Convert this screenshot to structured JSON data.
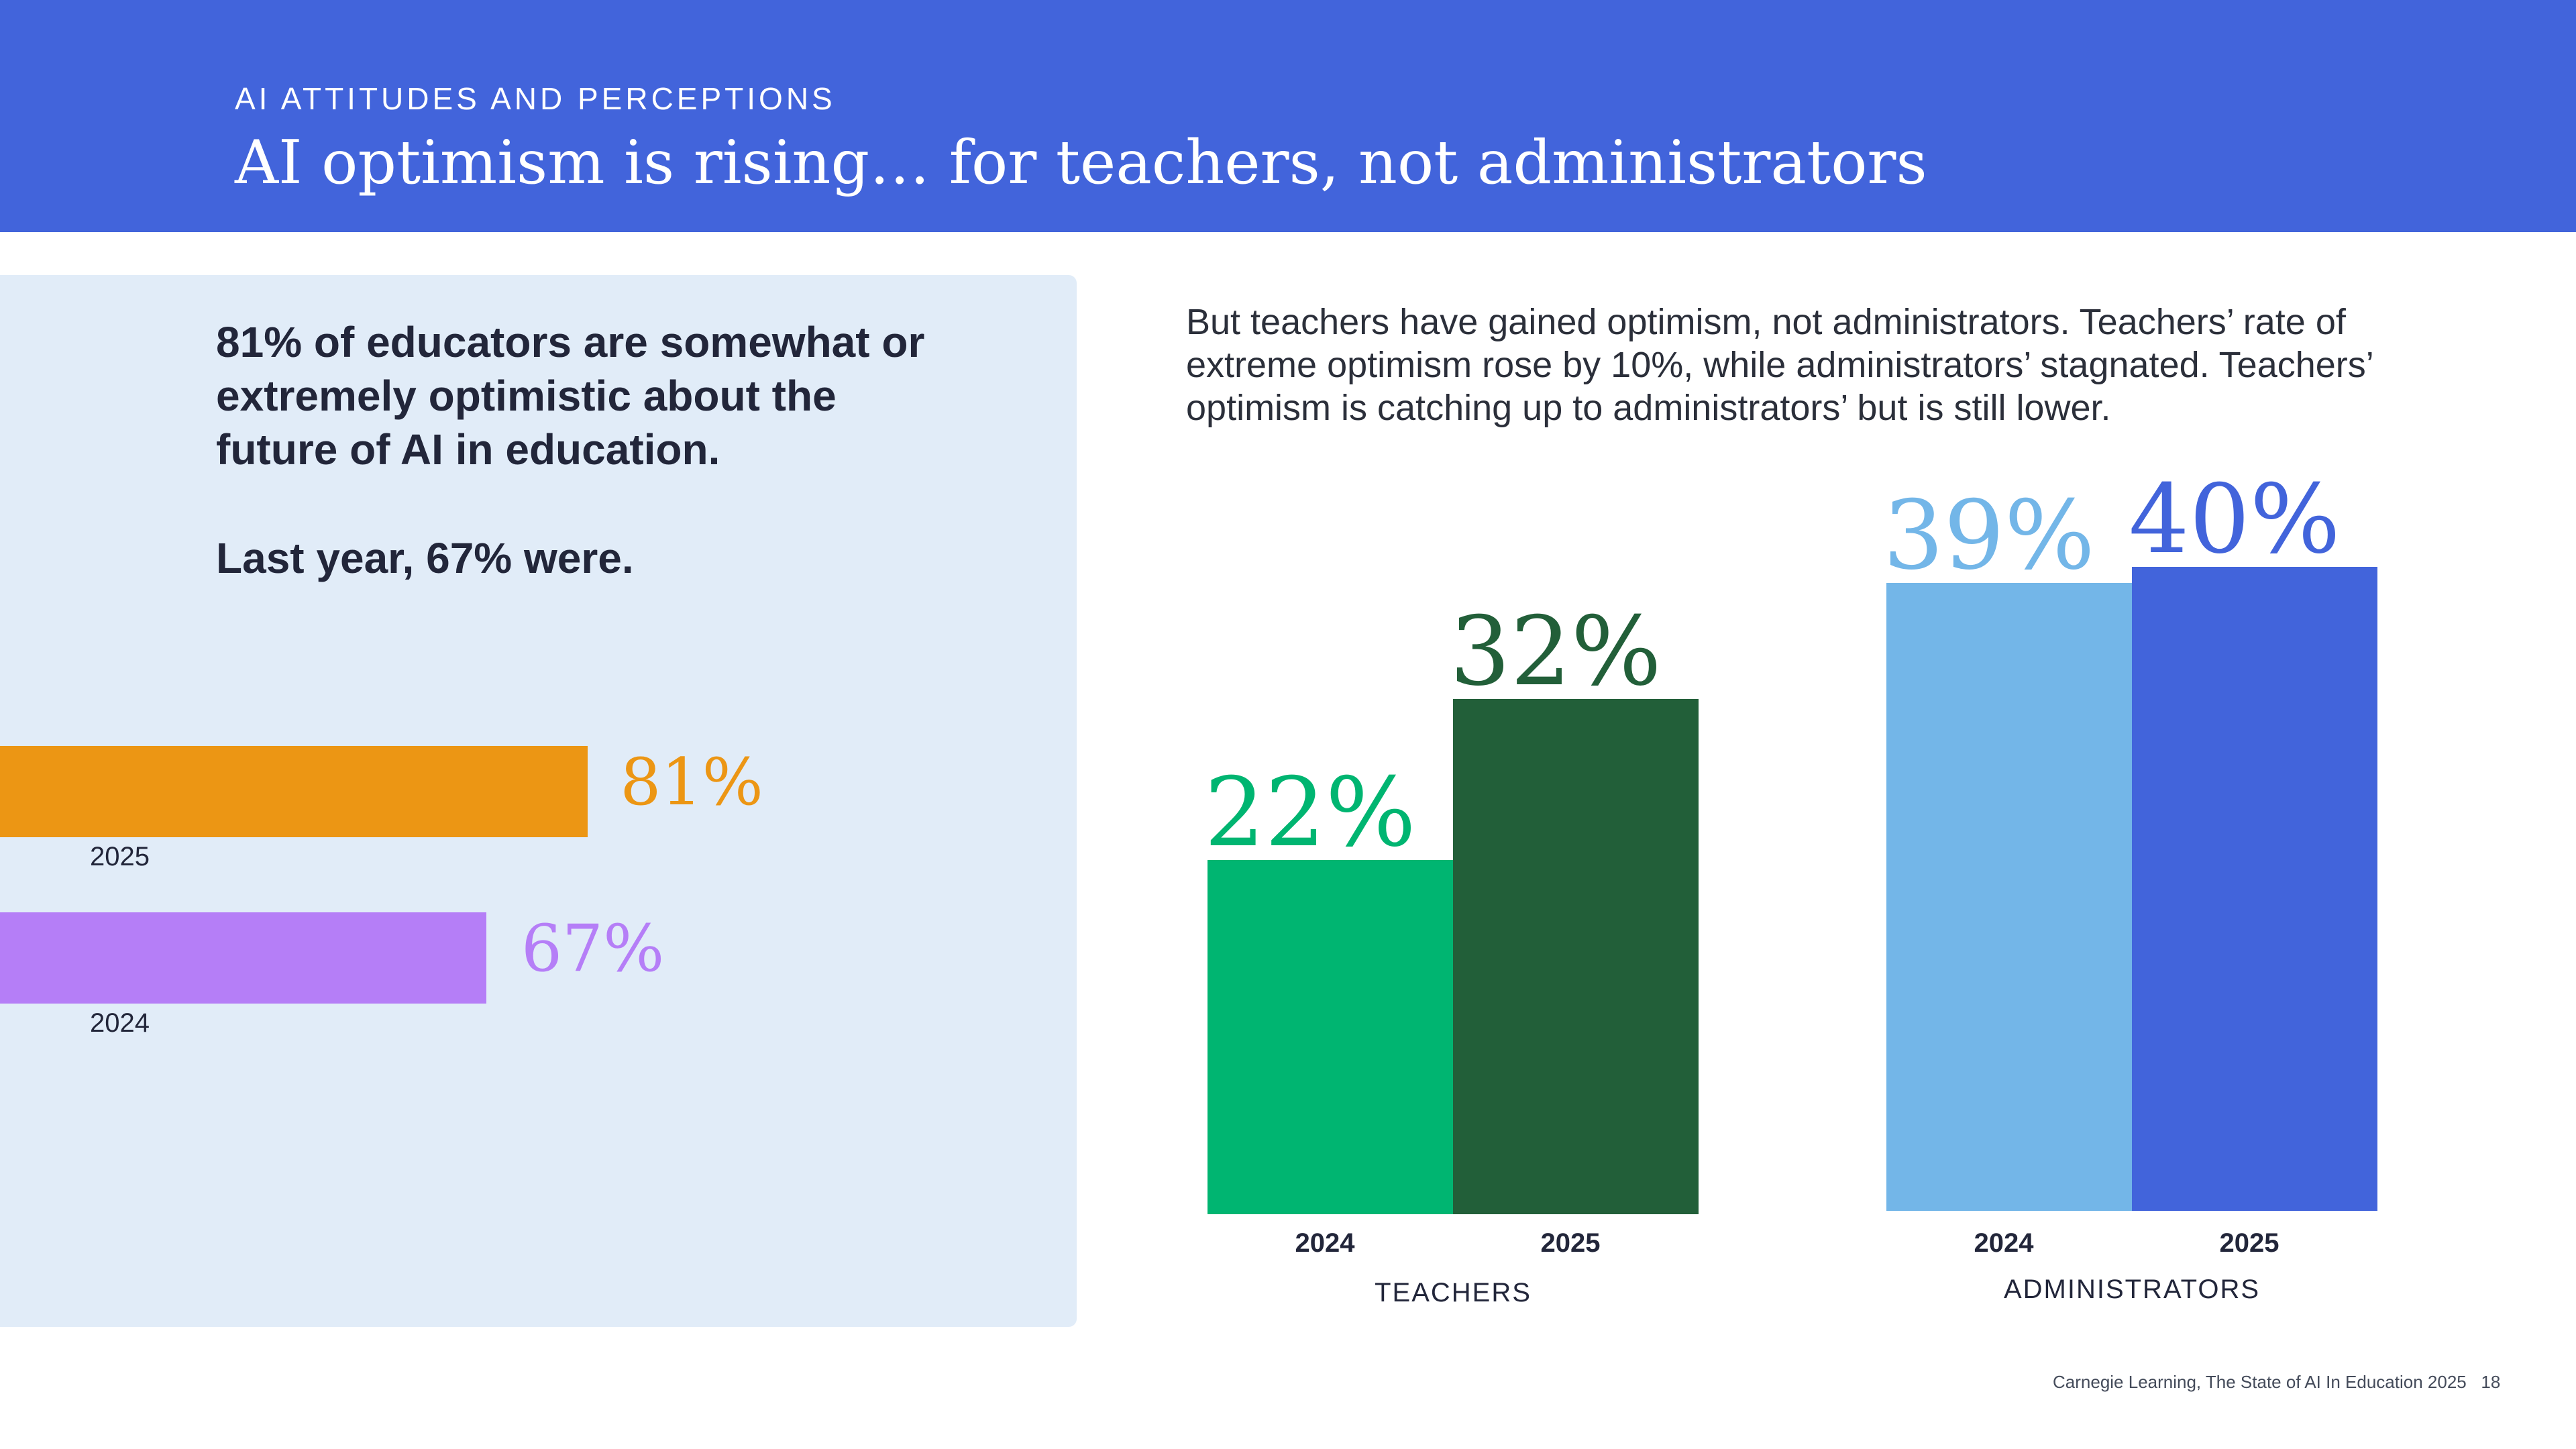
{
  "header": {
    "eyebrow": "AI ATTITUDES AND PERCEPTIONS",
    "title": "AI optimism is rising… for teachers, not administrators"
  },
  "left_panel": {
    "statement": "81% of educators are somewhat or extremely optimistic about the future of AI in education.",
    "statement_2": "Last year, 67% were."
  },
  "description": "But teachers have gained optimism, not administrators. Teachers’ rate of extreme optimism rose by 10%, while administrators’ stagnated. Teachers’ optimism is catching up to administrators’ but is still lower.",
  "colors": {
    "header_bg": "#4264DB",
    "bar_2025_overall": "#EC9614",
    "bar_2024_overall": "#B57EF7",
    "teachers_2024": "#00B571",
    "teachers_2025": "#225F39",
    "admins_2024": "#73B6E8",
    "admins_2025": "#4264DB"
  },
  "chart_data": [
    {
      "type": "bar",
      "orientation": "horizontal",
      "categories": [
        "2025",
        "2024"
      ],
      "values": [
        81,
        67
      ],
      "value_labels": [
        "81%",
        "67%"
      ],
      "title": "",
      "xlabel": "",
      "ylabel": "",
      "xlim": [
        0,
        100
      ],
      "grid": false
    },
    {
      "type": "bar",
      "orientation": "vertical",
      "groups": [
        {
          "label": "TEACHERS",
          "categories": [
            "2024",
            "2025"
          ],
          "values": [
            22,
            32
          ],
          "value_labels": [
            "22%",
            "32%"
          ]
        },
        {
          "label": "ADMINISTRATORS",
          "categories": [
            "2024",
            "2025"
          ],
          "values": [
            39,
            40
          ],
          "value_labels": [
            "39%",
            "40%"
          ]
        }
      ],
      "title": "",
      "xlabel": "",
      "ylabel": "",
      "ylim": [
        0,
        100
      ],
      "grid": false
    }
  ],
  "footer": {
    "source": "Carnegie Learning, The State of AI In Education 2025",
    "page_number": "18"
  }
}
